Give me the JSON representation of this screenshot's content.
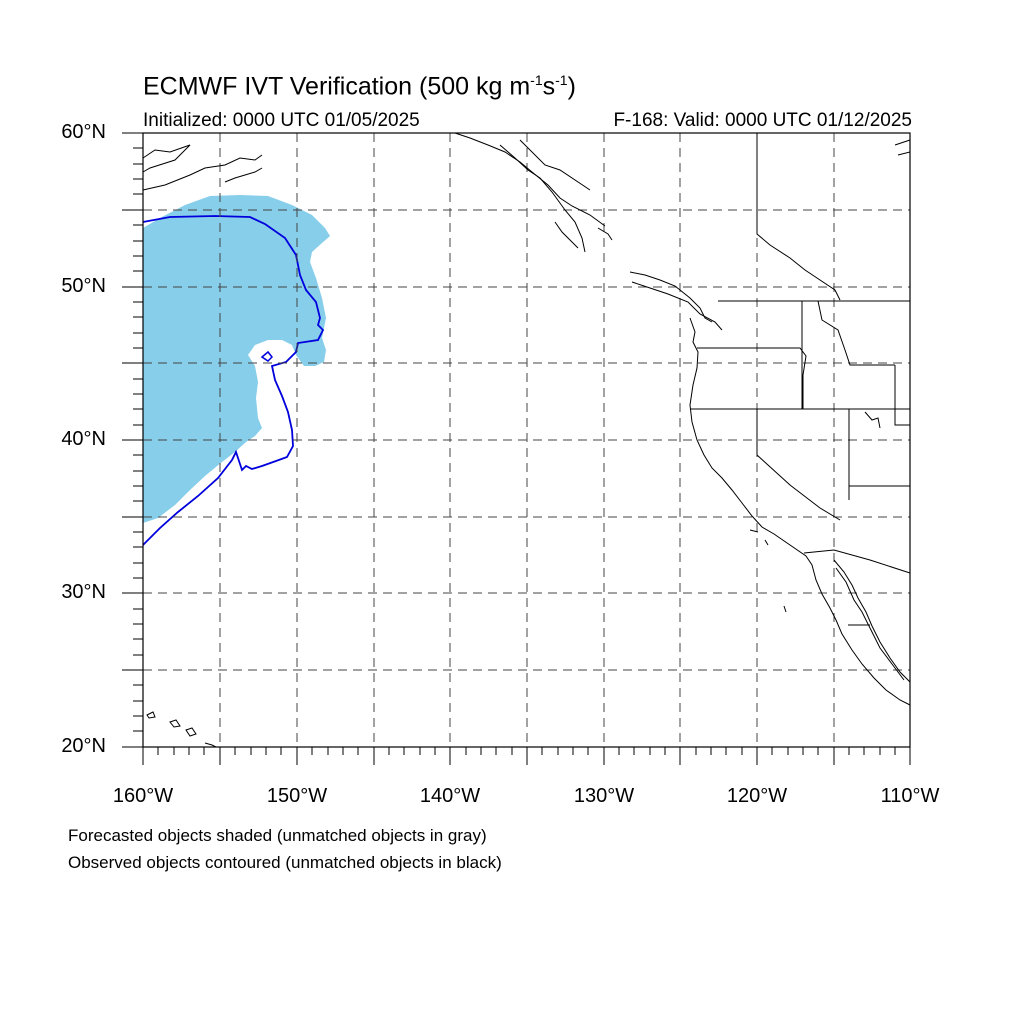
{
  "title": {
    "main": "ECMWF IVT Verification (500 kg m",
    "exp1": "-1",
    "mid": "s",
    "exp2": "-1",
    "close": ")"
  },
  "subtitle": {
    "initialized": "Initialized: 0000 UTC 01/05/2025",
    "valid": "F-168: Valid: 0000 UTC 01/12/2025"
  },
  "axes": {
    "lon_range": [
      -160,
      -110
    ],
    "lat_range": [
      20,
      60
    ],
    "lat_labels": [
      "60°N",
      "50°N",
      "40°N",
      "30°N",
      "20°N"
    ],
    "lon_labels": [
      "160°W",
      "150°W",
      "140°W",
      "130°W",
      "120°W",
      "110°W"
    ],
    "gridlines": true,
    "grid_interval_deg": 5
  },
  "legend": {
    "line1": "Forecasted objects shaded (unmatched objects in gray)",
    "line2": "Observed objects contoured (unmatched objects in black)"
  },
  "colors": {
    "forecast_fill": "#87ceeb",
    "observed_contour": "#0000dd",
    "coastline": "#000000",
    "grid": "#444444"
  }
}
